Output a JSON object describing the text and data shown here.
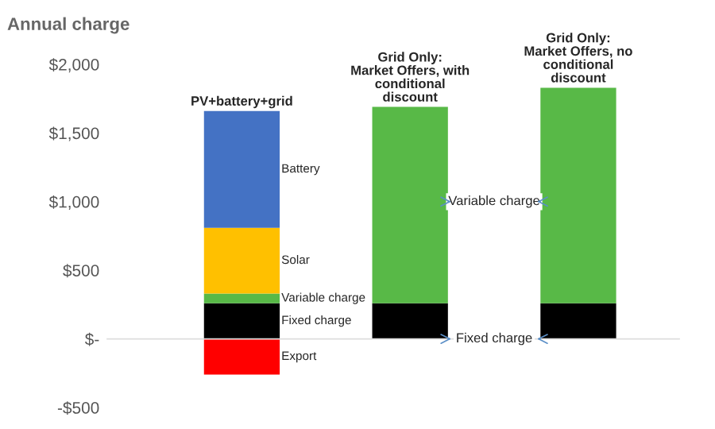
{
  "chart_data": {
    "type": "bar",
    "stacked": true,
    "ylabel": "Annual charge",
    "categories": [
      "PV+battery+grid",
      "Grid Only:\nMarket Offers, with\nconditional\ndiscount",
      "Grid Only:\nMarket Offers, no\nconditional\ndiscount"
    ],
    "series": [
      {
        "name": "Export",
        "color": "#ff0000",
        "values": [
          -260,
          null,
          null
        ]
      },
      {
        "name": "Fixed charge",
        "color": "#000000",
        "values": [
          260,
          260,
          260
        ]
      },
      {
        "name": "Variable charge",
        "color": "#58b947",
        "values": [
          70,
          1430,
          1570
        ]
      },
      {
        "name": "Solar",
        "color": "#ffc000",
        "values": [
          480,
          null,
          null
        ]
      },
      {
        "name": "Battery",
        "color": "#4472c4",
        "values": [
          850,
          null,
          null
        ]
      }
    ],
    "ylim": [
      -500,
      2000
    ],
    "yticks": [
      {
        "value": 2000,
        "label": "$2,000"
      },
      {
        "value": 1500,
        "label": "$1,500"
      },
      {
        "value": 1000,
        "label": "$1,000"
      },
      {
        "value": 500,
        "label": "$500"
      },
      {
        "value": 0,
        "label": "$-"
      },
      {
        "value": -500,
        "label": "-$500"
      }
    ],
    "annotations": [
      "Variable charge",
      "Fixed charge"
    ],
    "legend": false
  }
}
